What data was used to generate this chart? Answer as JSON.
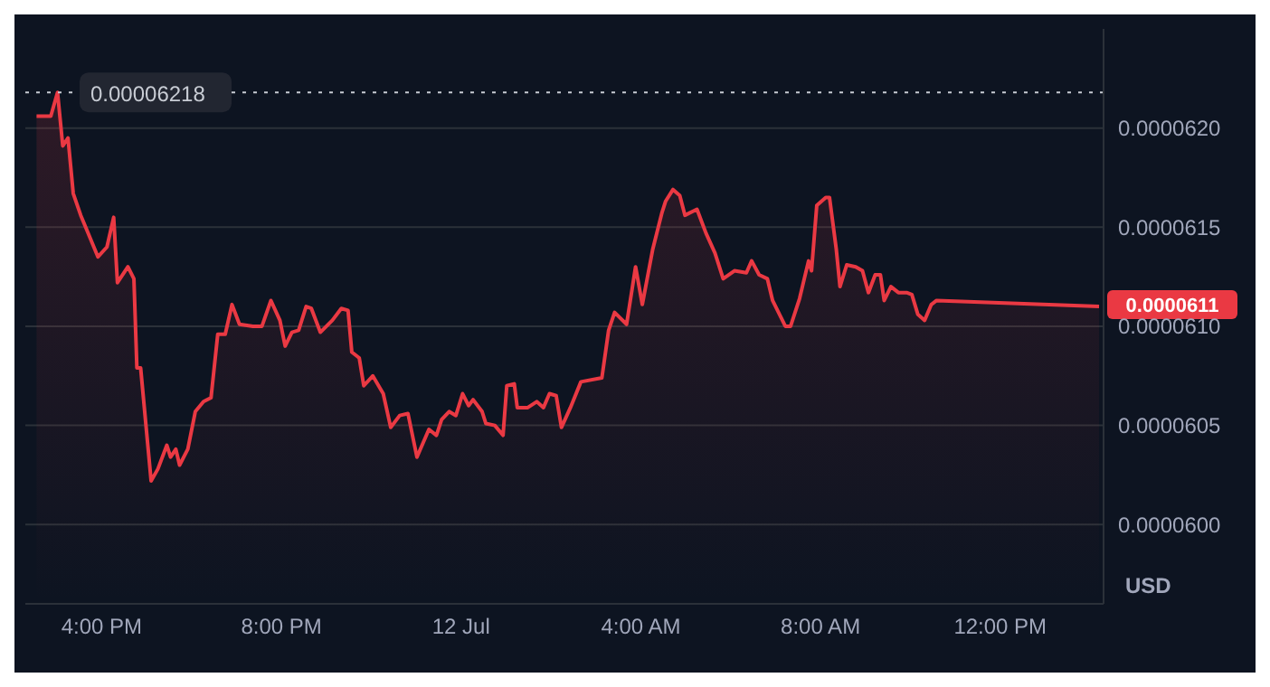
{
  "chart_data": {
    "type": "area",
    "ylabel": "USD",
    "x": [
      "--07-11T14:33",
      "--07-11T14:52",
      "--07-11T15:01",
      "--07-11T15:08",
      "--07-11T15:15",
      "--07-11T15:22",
      "--07-11T15:32",
      "--07-11T15:55",
      "--07-11T16:07",
      "--07-11T16:16",
      "--07-11T16:21",
      "--07-11T16:35",
      "--07-11T16:43",
      "--07-11T16:47",
      "--07-11T16:52",
      "--07-11T17:06",
      "--07-11T17:15",
      "--07-11T17:27",
      "--07-11T17:32",
      "--07-11T17:39",
      "--07-11T17:44",
      "--07-11T17:55",
      "--07-11T18:05",
      "--07-11T18:16",
      "--07-11T18:26",
      "--07-11T18:35",
      "--07-11T18:45",
      "--07-11T18:54",
      "--07-11T19:04",
      "--07-11T19:22",
      "--07-11T19:34",
      "--07-11T19:46",
      "--07-11T19:58",
      "--07-11T20:05",
      "--07-11T20:14",
      "--07-11T20:23",
      "--07-11T20:33",
      "--07-11T20:40",
      "--07-11T20:52",
      "--07-11T21:08",
      "--07-11T21:20",
      "--07-11T21:29",
      "--07-11T21:34",
      "--07-11T21:44",
      "--07-11T21:50",
      "--07-11T22:02",
      "--07-11T22:16",
      "--07-11T22:26",
      "--07-11T22:38",
      "--07-11T22:49",
      "--07-11T23:01",
      "--07-11T23:17",
      "--07-11T23:27",
      "--07-11T23:34",
      "--07-11T23:44",
      "--07-11T23:53",
      "--07-12T00:02",
      "--07-12T00:10",
      "--07-12T00:16",
      "--07-12T00:28",
      "--07-12T00:33",
      "--07-12T00:45",
      "--07-12T00:56",
      "--07-12T01:01",
      "--07-12T01:11",
      "--07-12T01:15",
      "--07-12T01:29",
      "--07-12T01:41",
      "--07-12T01:50",
      "--07-12T01:58",
      "--07-12T02:07",
      "--07-12T02:14",
      "--07-12T02:26",
      "--07-12T02:40",
      "--07-12T03:08",
      "--07-12T03:17",
      "--07-12T03:25",
      "--07-12T03:41",
      "--07-12T03:53",
      "--07-12T04:02",
      "--07-12T04:16",
      "--07-12T04:28",
      "--07-12T04:33",
      "--07-12T04:43",
      "--07-12T04:52",
      "--07-12T04:59",
      "--07-12T05:15",
      "--07-12T05:27",
      "--07-12T05:39",
      "--07-12T05:50",
      "--07-12T06:05",
      "--07-12T06:21",
      "--07-12T06:28",
      "--07-12T06:38",
      "--07-12T06:49",
      "--07-12T06:56",
      "--07-12T07:13",
      "--07-12T07:20",
      "--07-12T07:32",
      "--07-12T07:44",
      "--07-12T07:48",
      "--07-12T07:55",
      "--07-12T08:07",
      "--07-12T08:12",
      "--07-12T08:21",
      "--07-12T08:26",
      "--07-12T08:35",
      "--07-12T08:47",
      "--07-12T08:56",
      "--07-12T09:04",
      "--07-12T09:13",
      "--07-12T09:20",
      "--07-12T09:25",
      "--07-12T09:34",
      "--07-12T09:44",
      "--07-12T09:55",
      "--07-12T10:02",
      "--07-12T10:10",
      "--07-12T10:19",
      "--07-12T10:28",
      "--07-12T10:35",
      "--07-12T14:12"
    ],
    "series": [
      {
        "color": "#ea3943",
        "values": [
          6.206e-05,
          6.206e-05,
          6.218e-05,
          6.191e-05,
          6.195e-05,
          6.167e-05,
          6.156e-05,
          6.135e-05,
          6.14e-05,
          6.155e-05,
          6.122e-05,
          6.13e-05,
          6.124e-05,
          6.079e-05,
          6.079e-05,
          6.022e-05,
          6.028e-05,
          6.04e-05,
          6.034e-05,
          6.038e-05,
          6.03e-05,
          6.038e-05,
          6.057e-05,
          6.062e-05,
          6.064e-05,
          6.096e-05,
          6.096e-05,
          6.111e-05,
          6.101e-05,
          6.1e-05,
          6.1e-05,
          6.113e-05,
          6.103e-05,
          6.09e-05,
          6.097e-05,
          6.098e-05,
          6.11e-05,
          6.109e-05,
          6.097e-05,
          6.103e-05,
          6.109e-05,
          6.108e-05,
          6.087e-05,
          6.084e-05,
          6.07e-05,
          6.075e-05,
          6.066e-05,
          6.049e-05,
          6.055e-05,
          6.056e-05,
          6.034e-05,
          6.048e-05,
          6.045e-05,
          6.053e-05,
          6.057e-05,
          6.055e-05,
          6.066e-05,
          6.06e-05,
          6.063e-05,
          6.057e-05,
          6.051e-05,
          6.05e-05,
          6.045e-05,
          6.07e-05,
          6.071e-05,
          6.059e-05,
          6.059e-05,
          6.062e-05,
          6.059e-05,
          6.066e-05,
          6.065e-05,
          6.049e-05,
          6.059e-05,
          6.072e-05,
          6.074e-05,
          6.098e-05,
          6.107e-05,
          6.101e-05,
          6.13e-05,
          6.111e-05,
          6.139e-05,
          6.157e-05,
          6.163e-05,
          6.169e-05,
          6.166e-05,
          6.156e-05,
          6.159e-05,
          6.147e-05,
          6.137e-05,
          6.124e-05,
          6.128e-05,
          6.127e-05,
          6.133e-05,
          6.126e-05,
          6.124e-05,
          6.113e-05,
          6.1e-05,
          6.1e-05,
          6.114e-05,
          6.133e-05,
          6.128e-05,
          6.161e-05,
          6.165e-05,
          6.165e-05,
          6.139e-05,
          6.12e-05,
          6.131e-05,
          6.13e-05,
          6.128e-05,
          6.117e-05,
          6.126e-05,
          6.126e-05,
          6.113e-05,
          6.12e-05,
          6.117e-05,
          6.117e-05,
          6.116e-05,
          6.106e-05,
          6.103e-05,
          6.111e-05,
          6.113e-05,
          6.11e-05
        ]
      }
    ],
    "xlim": [
      "--07-11T14:18",
      "--07-12T14:18"
    ],
    "xticks": [
      {
        "value": "--07-11T16:00",
        "label": "4:00 PM"
      },
      {
        "value": "--07-11T20:00",
        "label": "8:00 PM"
      },
      {
        "value": "--07-12T00:00",
        "label": "12 Jul"
      },
      {
        "value": "--07-12T04:00",
        "label": "4:00 AM"
      },
      {
        "value": "--07-12T08:00",
        "label": "8:00 AM"
      },
      {
        "value": "--07-12T12:00",
        "label": "12:00 PM"
      }
    ],
    "ylim": [
      5.96e-05,
      6.25e-05
    ],
    "yticks": [
      {
        "value": 6e-05,
        "label": "0.0000600"
      },
      {
        "value": 6.05e-05,
        "label": "0.0000605"
      },
      {
        "value": 6.1e-05,
        "label": "0.0000610"
      },
      {
        "value": 6.15e-05,
        "label": "0.0000615"
      },
      {
        "value": 6.2e-05,
        "label": "0.0000620"
      }
    ],
    "grid": "y",
    "ref_lines": [
      {
        "axis": "y",
        "value": 6.218e-05,
        "label": "0.00006218",
        "line_style": "dotted",
        "color": "#c8ccd4"
      }
    ],
    "annotations": [
      "0.0000611"
    ]
  }
}
